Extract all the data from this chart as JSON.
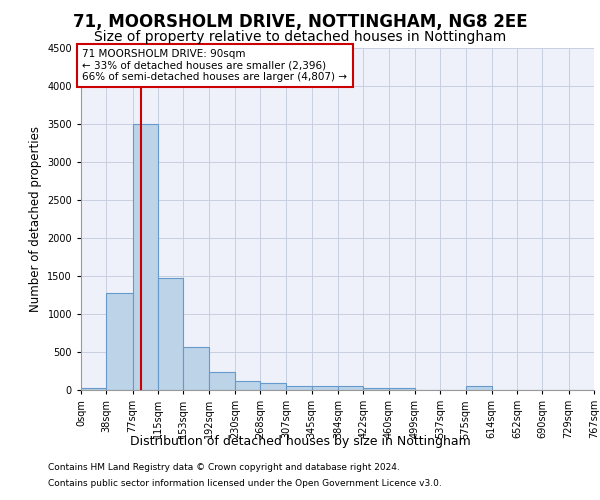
{
  "title1": "71, MOORSHOLM DRIVE, NOTTINGHAM, NG8 2EE",
  "title2": "Size of property relative to detached houses in Nottingham",
  "xlabel": "Distribution of detached houses by size in Nottingham",
  "ylabel": "Number of detached properties",
  "bin_edges": [
    0,
    38,
    77,
    115,
    153,
    192,
    230,
    268,
    307,
    345,
    384,
    422,
    460,
    499,
    537,
    575,
    614,
    652,
    690,
    729,
    767
  ],
  "bar_heights": [
    30,
    1270,
    3500,
    1470,
    570,
    240,
    120,
    90,
    55,
    50,
    50,
    30,
    30,
    0,
    0,
    50,
    0,
    0,
    0,
    0
  ],
  "bar_color": "#bdd4e8",
  "bar_edge_color": "#6699cc",
  "grid_color": "#c8cfe0",
  "bg_color": "#eef1fa",
  "red_line_x": 90,
  "annotation_line1": "71 MOORSHOLM DRIVE: 90sqm",
  "annotation_line2": "← 33% of detached houses are smaller (2,396)",
  "annotation_line3": "66% of semi-detached houses are larger (4,807) →",
  "annotation_box_color": "#cc0000",
  "ylim": [
    0,
    4500
  ],
  "yticks": [
    0,
    500,
    1000,
    1500,
    2000,
    2500,
    3000,
    3500,
    4000,
    4500
  ],
  "footer_line1": "Contains HM Land Registry data © Crown copyright and database right 2024.",
  "footer_line2": "Contains public sector information licensed under the Open Government Licence v3.0.",
  "title1_fontsize": 12,
  "title2_fontsize": 10,
  "tick_label_fontsize": 7,
  "ylabel_fontsize": 8.5,
  "xlabel_fontsize": 9,
  "footer_fontsize": 6.5
}
